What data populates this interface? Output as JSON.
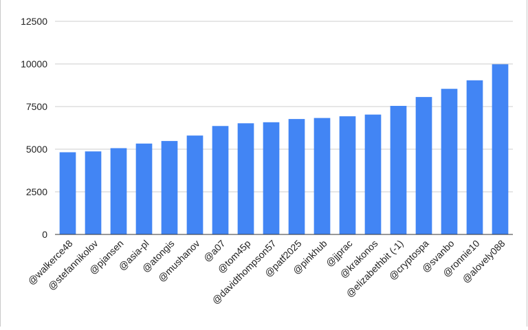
{
  "chart_data": {
    "type": "bar",
    "title": "",
    "xlabel": "",
    "ylabel": "",
    "ylim": [
      0,
      12500
    ],
    "yticks": [
      0,
      2500,
      5000,
      7500,
      10000,
      12500
    ],
    "grid": true,
    "legend": "none",
    "bar_color": "#4285F4",
    "categories": [
      "@walkerce48",
      "@stefannikolov",
      "@pjansen",
      "@asia-pl",
      "@atongis",
      "@mushanov",
      "@a07",
      "@tom45p",
      "@davidthompson57",
      "@patf2025",
      "@pinkhub",
      "@jjprac",
      "@krakonos",
      "@elizabethbit (-1)",
      "@cryptospa",
      "@svanbo",
      "@ronnie10",
      "@alovely088"
    ],
    "values": [
      4820,
      4870,
      5060,
      5330,
      5480,
      5800,
      6360,
      6520,
      6580,
      6770,
      6830,
      6930,
      7030,
      7540,
      8060,
      8540,
      9040,
      9980
    ]
  }
}
